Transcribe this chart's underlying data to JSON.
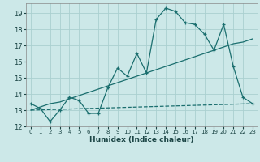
{
  "xlabel": "Humidex (Indice chaleur)",
  "bg_color": "#cce8e8",
  "grid_color": "#aad0d0",
  "line_color": "#1a6e6e",
  "xlim": [
    -0.5,
    23.5
  ],
  "ylim": [
    12,
    19.6
  ],
  "yticks": [
    12,
    13,
    14,
    15,
    16,
    17,
    18,
    19
  ],
  "xticks": [
    0,
    1,
    2,
    3,
    4,
    5,
    6,
    7,
    8,
    9,
    10,
    11,
    12,
    13,
    14,
    15,
    16,
    17,
    18,
    19,
    20,
    21,
    22,
    23
  ],
  "line1_x": [
    0,
    1,
    2,
    3,
    4,
    5,
    6,
    7,
    8,
    9,
    10,
    11,
    12,
    13,
    14,
    15,
    16,
    17,
    18,
    19,
    20,
    21,
    22,
    23
  ],
  "line1_y": [
    13.4,
    13.1,
    12.3,
    13.0,
    13.8,
    13.6,
    12.8,
    12.8,
    14.4,
    15.6,
    15.1,
    16.5,
    15.3,
    18.6,
    19.3,
    19.1,
    18.4,
    18.3,
    17.7,
    16.7,
    18.3,
    15.7,
    13.8,
    13.4
  ],
  "line2_x": [
    0,
    1,
    2,
    3,
    4,
    5,
    6,
    7,
    8,
    9,
    10,
    11,
    12,
    13,
    14,
    15,
    16,
    17,
    18,
    19,
    20,
    21,
    22,
    23
  ],
  "line2_y": [
    13.0,
    13.2,
    13.4,
    13.5,
    13.7,
    13.9,
    14.1,
    14.3,
    14.5,
    14.7,
    14.9,
    15.1,
    15.3,
    15.5,
    15.7,
    15.9,
    16.1,
    16.3,
    16.5,
    16.7,
    16.9,
    17.1,
    17.2,
    17.4
  ],
  "line3_x": [
    0,
    23
  ],
  "line3_y": [
    13.0,
    13.4
  ],
  "line3_style": "--"
}
